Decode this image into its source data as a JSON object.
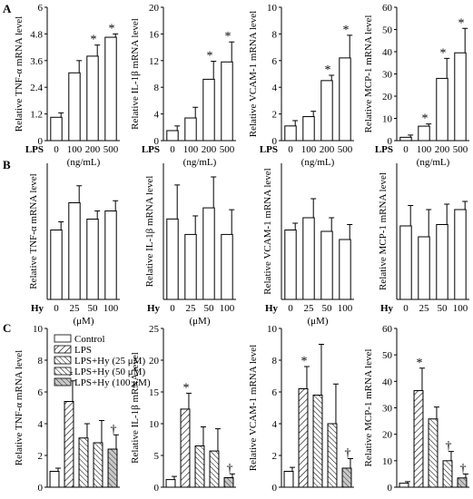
{
  "panel_letters": [
    "A",
    "B",
    "C"
  ],
  "x_prefix": {
    "A": "LPS",
    "B": "Hy",
    "C": ""
  },
  "legend": [
    "Control",
    "LPS",
    "LPS+Hy (25 μM)",
    "LPS+Hy (50 μM)",
    "LPS+Hy (100 μM)"
  ],
  "colors": {
    "bar_fill": "#ffffff",
    "hatch_fill": "#ffffff",
    "shade_fill": "#c8c8c8",
    "stroke": "#000000"
  },
  "chart_data": [
    {
      "id": "A1",
      "panel": "A",
      "type": "bar",
      "ylabel": "Relative TNF-α mRNA level",
      "xunit": "(ng/mL)",
      "categories": [
        "0",
        "100",
        "200",
        "500"
      ],
      "values": [
        1.05,
        3.05,
        3.8,
        4.65
      ],
      "errors": [
        0.2,
        0.55,
        0.5,
        0.15
      ],
      "marks": [
        "",
        "",
        "*",
        "*"
      ],
      "ylim": [
        0,
        6
      ],
      "yticks": [
        "0",
        "1.2",
        "2.4",
        "3.6",
        "4.8",
        "6"
      ]
    },
    {
      "id": "A2",
      "panel": "A",
      "type": "bar",
      "ylabel": "Relative IL-1β  mRNA level",
      "xunit": "(ng/mL)",
      "categories": [
        "0",
        "100",
        "200",
        "500"
      ],
      "values": [
        1.5,
        3.4,
        9.2,
        11.8
      ],
      "errors": [
        0.7,
        1.6,
        2.7,
        3.0
      ],
      "marks": [
        "",
        "",
        "*",
        "*"
      ],
      "ylim": [
        0,
        20
      ],
      "yticks": [
        "0",
        "4",
        "8",
        "12",
        "16",
        "20"
      ]
    },
    {
      "id": "A3",
      "panel": "A",
      "type": "bar",
      "ylabel": "Relative VCAM-1 mRNA level",
      "xunit": "(ng/mL)",
      "categories": [
        "0",
        "100",
        "200",
        "500"
      ],
      "values": [
        1.1,
        1.8,
        4.5,
        6.2
      ],
      "errors": [
        0.4,
        0.4,
        0.4,
        1.7
      ],
      "marks": [
        "",
        "",
        "*",
        "*"
      ],
      "ylim": [
        0,
        10
      ],
      "yticks": [
        "0",
        "2",
        "4",
        "6",
        "8",
        "10"
      ]
    },
    {
      "id": "A4",
      "panel": "A",
      "type": "bar",
      "ylabel": "Relative MCP-1 mRNA level",
      "xunit": "(ng/mL)",
      "categories": [
        "0",
        "100",
        "200",
        "500"
      ],
      "values": [
        1.5,
        6.5,
        28,
        39.5
      ],
      "errors": [
        1.0,
        1.0,
        9.0,
        11.0
      ],
      "marks": [
        "",
        "*",
        "*",
        "*"
      ],
      "ylim": [
        0,
        60
      ],
      "yticks": [
        "0",
        "10",
        "20",
        "30",
        "40",
        "50",
        "60"
      ]
    },
    {
      "id": "B1",
      "panel": "B",
      "type": "bar",
      "ylabel": "Relative TNF-α  mRNA level",
      "xunit": "(μM)",
      "categories": [
        "0",
        "25",
        "50",
        "100"
      ],
      "values": [
        1.02,
        1.42,
        1.18,
        1.3
      ],
      "errors": [
        0.12,
        0.25,
        0.12,
        0.15
      ],
      "marks": [
        "",
        "",
        "",
        ""
      ],
      "ylim": [
        0,
        2
      ]
    },
    {
      "id": "B2",
      "panel": "B",
      "type": "bar",
      "ylabel": "Relative IL-1β  mRNA level",
      "xunit": "(μM)",
      "categories": [
        "0",
        "25",
        "50",
        "100"
      ],
      "values": [
        1.3,
        1.05,
        1.48,
        1.05
      ],
      "errors": [
        0.55,
        0.3,
        0.5,
        0.4
      ],
      "marks": [
        "",
        "",
        "",
        ""
      ],
      "ylim": [
        0,
        2.2
      ]
    },
    {
      "id": "B3",
      "panel": "B",
      "type": "bar",
      "ylabel": "Relative VCAM-1 mRNA level",
      "xunit": "(μM)",
      "categories": [
        "0",
        "25",
        "50",
        "100"
      ],
      "values": [
        1.02,
        1.2,
        1.0,
        0.88
      ],
      "errors": [
        0.1,
        0.28,
        0.2,
        0.22
      ],
      "marks": [
        "",
        "",
        "",
        ""
      ],
      "ylim": [
        0,
        2
      ]
    },
    {
      "id": "B4",
      "panel": "B",
      "type": "bar",
      "ylabel": "Relative MCP-1 mRNA level",
      "xunit": "",
      "categories": [
        "0",
        "25",
        "50",
        "100"
      ],
      "values": [
        1.08,
        0.92,
        1.1,
        1.32
      ],
      "errors": [
        0.3,
        0.4,
        0.3,
        0.12
      ],
      "marks": [
        "",
        "",
        "",
        ""
      ],
      "ylim": [
        0,
        2
      ]
    },
    {
      "id": "C1",
      "panel": "C",
      "type": "bar",
      "ylabel": "Relative TNF-α  mRNA level",
      "xunit": "",
      "categories": [
        "Control",
        "LPS",
        "LPS+Hy (25 μM)",
        "LPS+Hy (50 μM)",
        "LPS+Hy (100 μM)"
      ],
      "values": [
        1.0,
        5.4,
        3.1,
        2.8,
        2.4
      ],
      "errors": [
        0.2,
        1.3,
        0.9,
        1.4,
        0.9
      ],
      "marks": [
        "",
        "*",
        "",
        "",
        "†"
      ],
      "ylim": [
        0,
        10
      ],
      "yticks": [
        "0",
        "2",
        "4",
        "6",
        "8",
        "10"
      ]
    },
    {
      "id": "C2",
      "panel": "C",
      "type": "bar",
      "ylabel": "Relative IL-1β  mRNA level",
      "xunit": "",
      "categories": [
        "Control",
        "LPS",
        "LPS+Hy (25 μM)",
        "LPS+Hy (50 μM)",
        "LPS+Hy (100 μM)"
      ],
      "values": [
        1.2,
        12.3,
        6.5,
        5.7,
        1.5
      ],
      "errors": [
        0.5,
        2.5,
        3.0,
        3.5,
        0.6
      ],
      "marks": [
        "",
        "*",
        "",
        "",
        "†"
      ],
      "ylim": [
        0,
        25
      ],
      "yticks": [
        "0",
        "5",
        "10",
        "15",
        "20",
        "25"
      ]
    },
    {
      "id": "C3",
      "panel": "C",
      "type": "bar",
      "ylabel": "Relative VCAM-1 mRNA level",
      "xunit": "",
      "categories": [
        "Control",
        "LPS",
        "LPS+Hy (25 μM)",
        "LPS+Hy (50 μM)",
        "LPS+Hy (100 μM)"
      ],
      "values": [
        1.0,
        6.2,
        5.8,
        4.0,
        1.2
      ],
      "errors": [
        0.25,
        1.4,
        3.2,
        2.5,
        0.6
      ],
      "marks": [
        "",
        "*",
        "",
        "",
        "†"
      ],
      "ylim": [
        0,
        10
      ],
      "yticks": [
        "0",
        "2",
        "4",
        "6",
        "8",
        "10"
      ]
    },
    {
      "id": "C4",
      "panel": "C",
      "type": "bar",
      "ylabel": "Relative MCP-1 mRNA level",
      "xunit": "",
      "categories": [
        "Control",
        "LPS",
        "LPS+Hy (25 μM)",
        "LPS+Hy (50 μM)",
        "LPS+Hy (100 μM)"
      ],
      "values": [
        1.5,
        36.5,
        25.8,
        10.0,
        3.5
      ],
      "errors": [
        0.6,
        8.5,
        4.5,
        3.5,
        1.5
      ],
      "marks": [
        "",
        "*",
        "",
        "†",
        "†"
      ],
      "ylim": [
        0,
        60
      ],
      "yticks": [
        "0",
        "10",
        "20",
        "30",
        "40",
        "50",
        "60"
      ]
    }
  ]
}
